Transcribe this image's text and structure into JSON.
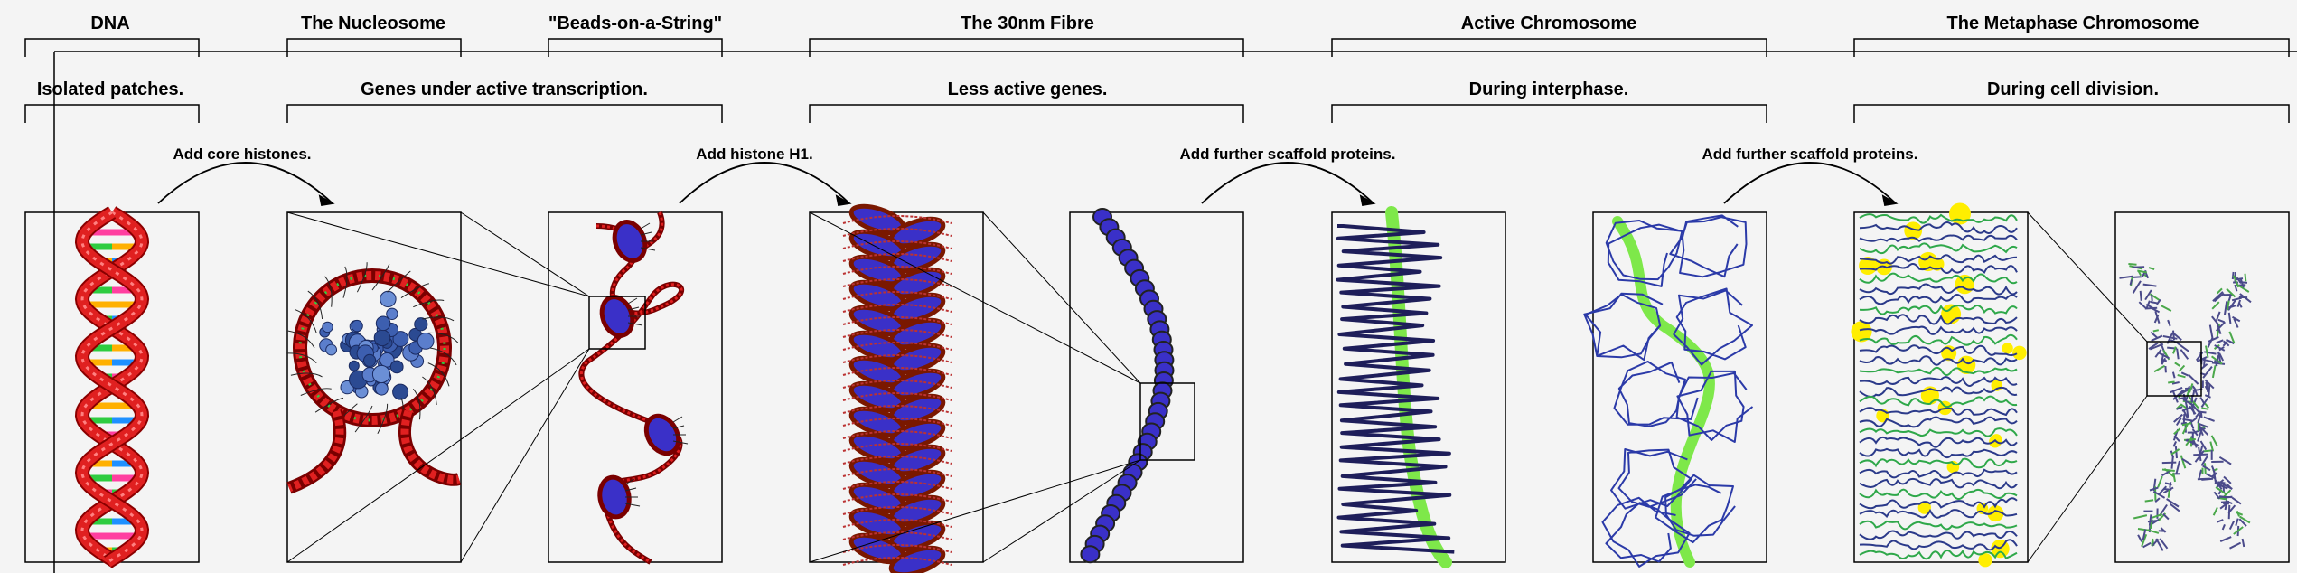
{
  "titles": {
    "dna": "DNA",
    "nucleosome": "The Nucleosome",
    "beads": "\"Beads-on-a-String\"",
    "fibre": "The 30nm Fibre",
    "active": "Active Chromosome",
    "metaphase": "The Metaphase Chromosome"
  },
  "subtitles": {
    "isolated": "Isolated patches.",
    "genes_active": "Genes under active transcription.",
    "less_active": "Less active genes.",
    "interphase": "During interphase.",
    "division": "During cell division."
  },
  "steps": {
    "core_histones": "Add core histones.",
    "histone_h1": "Add histone H1.",
    "scaffold1": "Add further scaffold proteins.",
    "scaffold2": "Add further scaffold proteins."
  },
  "colors": {
    "dna_strand": "#e02020",
    "histone": "#3a30c8",
    "chromatin_line": "#1e1e5a",
    "scaffold": "#7ee84a",
    "scaffold_protein": "#ffee00"
  }
}
